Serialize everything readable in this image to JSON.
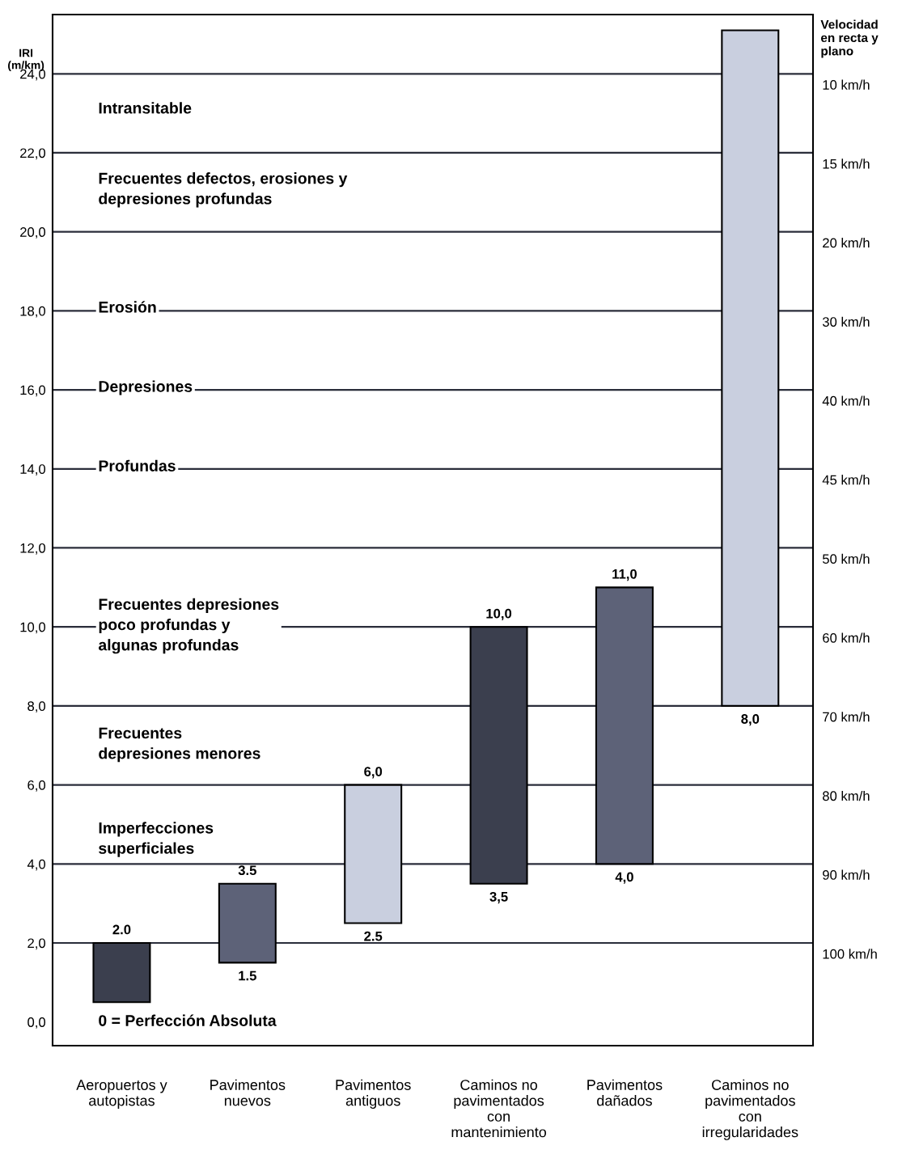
{
  "chart_data": {
    "type": "bar",
    "ylabel": "IRI\n(m/km)",
    "y2label": "Velocidad\nen recta y\nplano",
    "categories": [
      "Aeropuertos y\nautopistas",
      "Pavimentos\nnuevos",
      "Pavimentos\nantiguos",
      "Caminos no\npavimentados\ncon\nmantenimiento",
      "Pavimentos\ndañados",
      "Caminos no\npavimentados\ncon\nirregularidades"
    ],
    "base": [
      0.5,
      1.5,
      2.5,
      3.5,
      4.0,
      8.0
    ],
    "values": [
      1.5,
      2.0,
      3.5,
      6.5,
      7.0,
      17.1
    ],
    "colors": [
      "#3b3f4e",
      "#5d6278",
      "#c9cfdf",
      "#3b3f4e",
      "#5d6278",
      "#c9cfdf"
    ],
    "value_labels": [
      "2.0",
      "3.5",
      "6,0",
      "10,0",
      "11,0",
      null
    ],
    "ylim": [
      -0.6,
      25.5
    ],
    "yticks": [
      {
        "value": 0,
        "label": "0,0"
      },
      {
        "value": 2,
        "label": "2,0"
      },
      {
        "value": 4,
        "label": "4,0"
      },
      {
        "value": 6,
        "label": "6,0"
      },
      {
        "value": 8,
        "label": "8,0"
      },
      {
        "value": 10,
        "label": "10,0"
      },
      {
        "value": 12,
        "label": "12,0"
      },
      {
        "value": 14,
        "label": "14,0"
      },
      {
        "value": 16,
        "label": "16,0"
      },
      {
        "value": 18,
        "label": "18,0"
      },
      {
        "value": 20,
        "label": "20,0"
      },
      {
        "value": 22,
        "label": "22,0"
      },
      {
        "value": 24,
        "label": "24,0"
      }
    ],
    "ref_lines": [
      {
        "axis": "y",
        "value": 2,
        "label": "100 km/h"
      },
      {
        "axis": "y",
        "value": 4,
        "label": "90 km/h"
      },
      {
        "axis": "y",
        "value": 6,
        "label": "80 km/h"
      },
      {
        "axis": "y",
        "value": 8,
        "label": "70 km/h"
      },
      {
        "axis": "y",
        "value": 10,
        "label": "60 km/h"
      },
      {
        "axis": "y",
        "value": 12,
        "label": "50 km/h"
      },
      {
        "axis": "y",
        "value": 14,
        "label": "45 km/h"
      },
      {
        "axis": "y",
        "value": 16,
        "label": "40 km/h"
      },
      {
        "axis": "y",
        "value": 18,
        "label": "30 km/h"
      },
      {
        "axis": "y",
        "value": 20,
        "label": "20 km/h"
      },
      {
        "axis": "y",
        "value": 22,
        "label": "15 km/h"
      },
      {
        "axis": "y",
        "value": 24,
        "label": "10 km/h"
      }
    ],
    "annotations": [
      "Intransitable",
      "Frecuentes defectos, erosiones y\ndepresiones profundas",
      "Erosión",
      "Depresiones",
      "Profundas",
      "Frecuentes depresiones\npoco profundas y\nalgunas profundas",
      "Frecuentes\ndepresiones menores",
      "Imperfecciones\nsuperficiales",
      "0 = Perfección Absoluta",
      {
        "text": "1.5",
        "x": "Pavimentos\nnuevos",
        "y": 1.5
      },
      {
        "text": "2.5",
        "x": "Pavimentos\nantiguos",
        "y": 2.5
      },
      {
        "text": "3,5",
        "x": "Caminos no\npavimentados\ncon\nmantenimiento",
        "y": 3.5
      },
      {
        "text": "4,0",
        "x": "Pavimentos\ndañados",
        "y": 4.0
      },
      {
        "text": "8,0",
        "x": "Caminos no\npavimentados\ncon\nirregularidades",
        "y": 8.0
      }
    ]
  }
}
